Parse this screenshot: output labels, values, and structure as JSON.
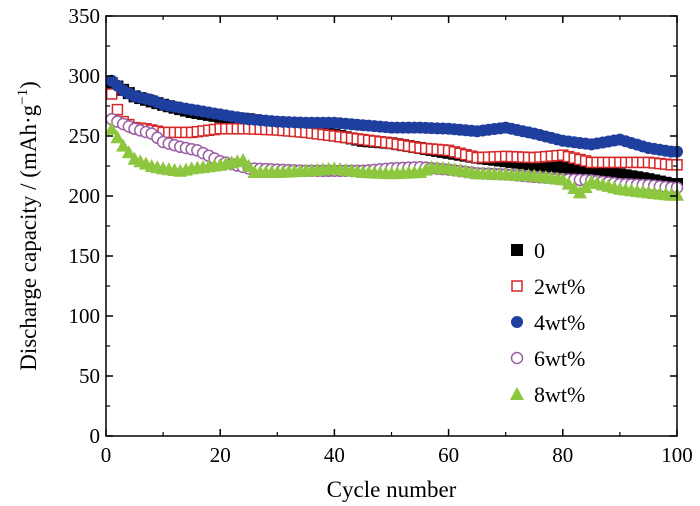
{
  "chart_data": {
    "type": "scatter",
    "xlabel": "Cycle number",
    "ylabel": "Discharge capacity / (mAh·g",
    "ylabel_unit_sup": "−1",
    "ylabel_close": ")",
    "xlim": [
      0,
      100
    ],
    "ylim": [
      0,
      350
    ],
    "xticks": [
      0,
      20,
      40,
      60,
      80,
      100
    ],
    "yticks": [
      0,
      50,
      100,
      150,
      200,
      250,
      300,
      350
    ],
    "grid": false,
    "legend_position": "lower-right",
    "series": [
      {
        "name": "0",
        "marker": "square-filled",
        "color": "#000000",
        "x": [
          1,
          5,
          10,
          15,
          20,
          25,
          30,
          35,
          40,
          45,
          50,
          55,
          60,
          65,
          70,
          75,
          80,
          85,
          90,
          95,
          99
        ],
        "y": [
          294,
          283,
          276,
          270,
          266,
          264,
          260,
          255,
          251,
          246,
          244,
          240,
          236,
          232,
          229,
          226,
          224,
          221,
          218,
          214,
          210
        ]
      },
      {
        "name": "2wt%",
        "marker": "square-open",
        "color": "#d62728",
        "x": [
          1,
          2,
          3,
          5,
          7,
          10,
          15,
          20,
          25,
          30,
          35,
          40,
          45,
          50,
          55,
          60,
          65,
          70,
          75,
          80,
          85,
          90,
          95,
          99
        ],
        "y": [
          285,
          272,
          262,
          257,
          256,
          253,
          253,
          256,
          256,
          255,
          253,
          250,
          247,
          244,
          240,
          238,
          232,
          233,
          232,
          234,
          228,
          228,
          228,
          226
        ]
      },
      {
        "name": "4wt%",
        "marker": "circle-filled",
        "color": "#1f3f9f",
        "x": [
          1,
          3,
          5,
          8,
          10,
          15,
          20,
          25,
          30,
          35,
          40,
          45,
          50,
          55,
          60,
          65,
          70,
          75,
          80,
          85,
          90,
          95,
          99
        ],
        "y": [
          296,
          288,
          283,
          280,
          276,
          272,
          268,
          264,
          262,
          261,
          261,
          259,
          257,
          257,
          256,
          254,
          257,
          252,
          246,
          243,
          247,
          240,
          237
        ]
      },
      {
        "name": "6wt%",
        "marker": "circle-open",
        "color": "#9b5fa5",
        "x": [
          1,
          3,
          5,
          8,
          10,
          13,
          16,
          20,
          25,
          30,
          35,
          40,
          45,
          50,
          55,
          60,
          65,
          70,
          75,
          80,
          85,
          90,
          95,
          99
        ],
        "y": [
          264,
          260,
          256,
          252,
          245,
          241,
          238,
          229,
          223,
          222,
          221,
          221,
          221,
          223,
          224,
          222,
          219,
          218,
          216,
          214,
          213,
          210,
          209,
          207
        ]
      },
      {
        "name": "8wt%",
        "marker": "triangle-filled",
        "color": "#8dc63f",
        "x": [
          1,
          3,
          5,
          8,
          10,
          13,
          15,
          20,
          24,
          26,
          30,
          35,
          40,
          45,
          50,
          55,
          57,
          60,
          65,
          70,
          75,
          80,
          83,
          85,
          90,
          95,
          99
        ],
        "y": [
          256,
          242,
          231,
          225,
          223,
          221,
          223,
          226,
          230,
          220,
          220,
          221,
          223,
          220,
          219,
          220,
          224,
          223,
          219,
          218,
          217,
          214,
          203,
          212,
          206,
          203,
          201
        ]
      }
    ]
  }
}
